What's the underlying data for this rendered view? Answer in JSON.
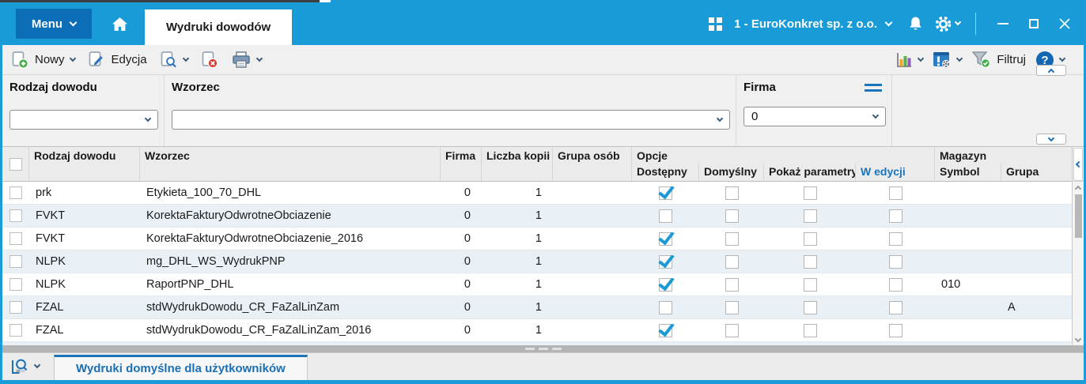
{
  "titlebar": {
    "menu": "Menu",
    "tab": "Wydruki dowodów",
    "company": "1 - EuroKonkret sp. z o.o."
  },
  "toolbar": {
    "new": "Nowy",
    "edit": "Edycja",
    "filter": "Filtruj"
  },
  "filters": {
    "rodzaj_dowodu": {
      "label": "Rodzaj dowodu",
      "value": ""
    },
    "wzorzec": {
      "label": "Wzorzec",
      "value": ""
    },
    "firma": {
      "label": "Firma",
      "value": "0"
    }
  },
  "table": {
    "header": {
      "rodzaj": "Rodzaj dowodu",
      "wzorzec": "Wzorzec",
      "firma": "Firma",
      "kopie": "Liczba kopii",
      "grupa_osob": "Grupa osób",
      "opcje": "Opcje",
      "dostepny": "Dostępny",
      "domyslny": "Domyślny",
      "pokaz": "Pokaż parametry",
      "edycja": "W edycji",
      "magazyn": "Magazyn",
      "symbol": "Symbol",
      "grupa": "Grupa"
    },
    "rows": [
      {
        "rodzaj": "prk",
        "wzorzec": "Etykieta_100_70_DHL",
        "firma": "0",
        "kopie": "1",
        "grupa_osob": "",
        "dostepny": true,
        "domyslny": false,
        "pokaz": false,
        "edycja": false,
        "symbol": "",
        "grupa": ""
      },
      {
        "rodzaj": "FVKT",
        "wzorzec": "KorektaFakturyOdwrotneObciazenie",
        "firma": "0",
        "kopie": "1",
        "grupa_osob": "",
        "dostepny": false,
        "domyslny": false,
        "pokaz": false,
        "edycja": false,
        "symbol": "",
        "grupa": ""
      },
      {
        "rodzaj": "FVKT",
        "wzorzec": "KorektaFakturyOdwrotneObciazenie_2016",
        "firma": "0",
        "kopie": "1",
        "grupa_osob": "",
        "dostepny": true,
        "domyslny": false,
        "pokaz": false,
        "edycja": false,
        "symbol": "",
        "grupa": ""
      },
      {
        "rodzaj": "NLPK",
        "wzorzec": "mg_DHL_WS_WydrukPNP",
        "firma": "0",
        "kopie": "1",
        "grupa_osob": "",
        "dostepny": true,
        "domyslny": false,
        "pokaz": false,
        "edycja": false,
        "symbol": "",
        "grupa": ""
      },
      {
        "rodzaj": "NLPK",
        "wzorzec": "RaportPNP_DHL",
        "firma": "0",
        "kopie": "1",
        "grupa_osob": "",
        "dostepny": true,
        "domyslny": false,
        "pokaz": false,
        "edycja": false,
        "symbol": "010",
        "grupa": ""
      },
      {
        "rodzaj": "FZAL",
        "wzorzec": "stdWydrukDowodu_CR_FaZalLinZam",
        "firma": "0",
        "kopie": "1",
        "grupa_osob": "",
        "dostepny": false,
        "domyslny": false,
        "pokaz": false,
        "edycja": false,
        "symbol": "",
        "grupa": "A"
      },
      {
        "rodzaj": "FZAL",
        "wzorzec": "stdWydrukDowodu_CR_FaZalLinZam_2016",
        "firma": "0",
        "kopie": "1",
        "grupa_osob": "",
        "dostepny": true,
        "domyslny": false,
        "pokaz": false,
        "edycja": false,
        "symbol": "",
        "grupa": ""
      }
    ]
  },
  "bottom": {
    "tab": "Wydruki domyślne dla użytkowników"
  },
  "icons": {
    "home": "house",
    "apps": "grid-2x2",
    "bell": "bell",
    "settings": "gear",
    "minimize": "–",
    "maximize": "□",
    "close": "×",
    "new": "document-plus-green",
    "edit": "document-pencil-blue",
    "preview": "document-magnifier",
    "delete": "document-x-red",
    "print": "printer",
    "analysis": "bar-chart",
    "alerts_settings": "alert-gear",
    "filter": "funnel-green-check",
    "help": "question-circle",
    "firma_options": "double-bar",
    "collapse_up": "chevron-up",
    "expand_down": "chevron-down",
    "collapse_left": "chevron-left",
    "bottom_preview": "magnifier-panel"
  },
  "colors": {
    "accent": "#189bd7",
    "menu_button": "#0d6eb8",
    "checkbox_check": "#1b9ad6",
    "link_blue": "#1a75bb",
    "row_alt": "#e9f1f7",
    "splitter": "#b4b4b4"
  }
}
